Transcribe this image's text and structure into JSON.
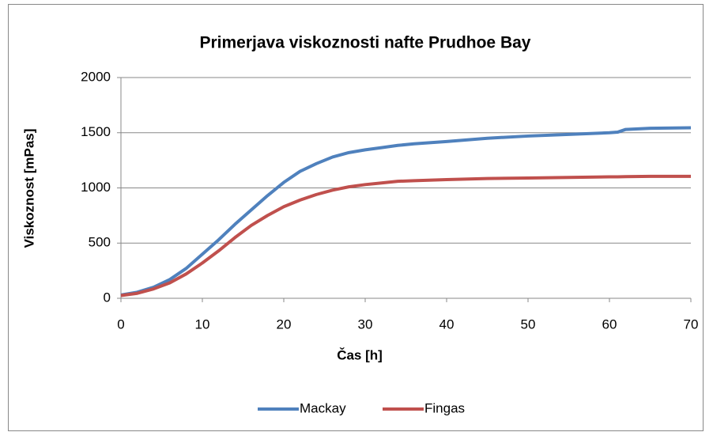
{
  "chart_data": {
    "type": "line",
    "title": "Primerjava viskoznosti nafte Prudhoe Bay",
    "xlabel": "Čas [h]",
    "ylabel": "Viskoznost [mPas]",
    "x": [
      0,
      2,
      4,
      6,
      8,
      10,
      12,
      14,
      16,
      18,
      20,
      22,
      24,
      26,
      28,
      30,
      32,
      34,
      36,
      40,
      45,
      50,
      55,
      60,
      61,
      62,
      65,
      70
    ],
    "series": [
      {
        "name": "Mackay",
        "color": "#4f81bd",
        "values": [
          30,
          55,
          100,
          170,
          270,
          400,
          530,
          670,
          800,
          930,
          1050,
          1150,
          1220,
          1280,
          1320,
          1345,
          1365,
          1385,
          1400,
          1420,
          1450,
          1470,
          1485,
          1500,
          1505,
          1530,
          1540,
          1545
        ]
      },
      {
        "name": "Fingas",
        "color": "#c0504d",
        "values": [
          25,
          45,
          85,
          140,
          220,
          320,
          430,
          550,
          660,
          750,
          830,
          890,
          940,
          980,
          1010,
          1030,
          1045,
          1060,
          1065,
          1075,
          1085,
          1090,
          1095,
          1100,
          1100,
          1102,
          1105,
          1105
        ]
      }
    ],
    "xlim": [
      0,
      70
    ],
    "xticks": [
      0,
      10,
      20,
      30,
      40,
      50,
      60,
      70
    ],
    "ylim": [
      0,
      2000
    ],
    "yticks": [
      0,
      500,
      1000,
      1500,
      2000
    ],
    "grid": true,
    "legend": "bottom"
  }
}
